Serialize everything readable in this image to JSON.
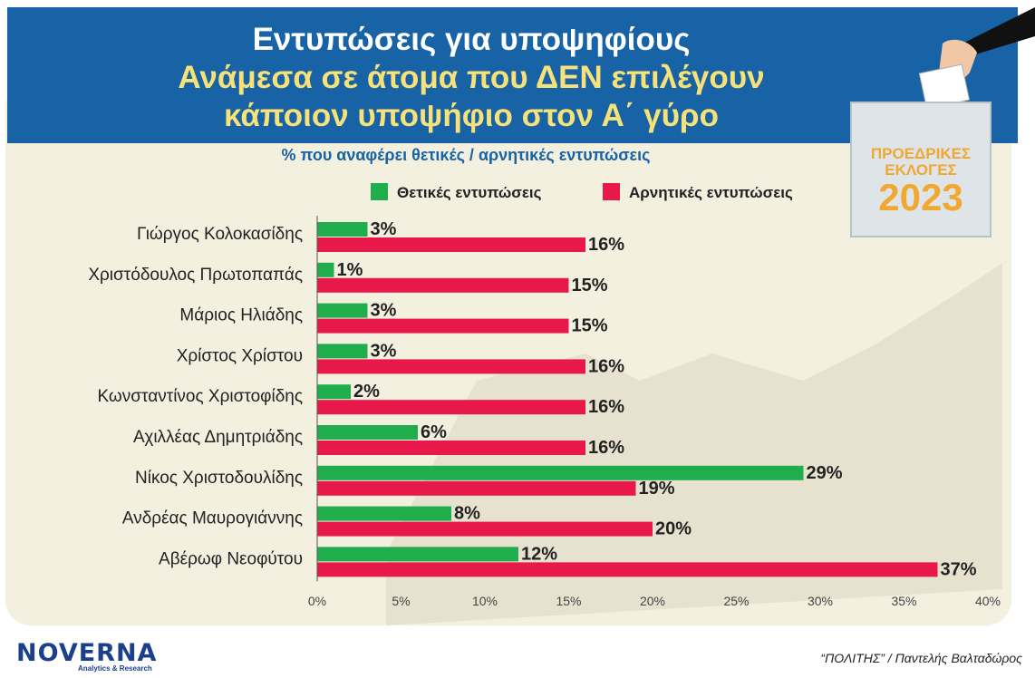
{
  "header": {
    "title_line1": "Εντυπώσεις για υποψηφίους",
    "title_line2": "Ανάμεσα σε άτομα που ΔΕΝ επιλέγουν",
    "title_line3": "κάποιον υποψήφιο στον Α΄ γύρο"
  },
  "subtitle": "% που αναφέρει θετικές / αρνητικές εντυπώσεις",
  "legend": {
    "positive": "Θετικές εντυπώσεις",
    "negative": "Αρνητικές εντυπώσεις"
  },
  "badge": {
    "line1": "ΠΡΟΕΔΡΙΚΕΣ",
    "line2": "ΕΚΛΟΓΕΣ",
    "year": "2023"
  },
  "colors": {
    "positive": "#1fae4b",
    "negative": "#e8194a",
    "banner": "#1763a6",
    "accent_text": "#f7e27a"
  },
  "footer": {
    "logo": "NOVERNA",
    "logo_sub": "Analytics & Research",
    "source": "“ΠΟΛΙΤΗΣ” / Παντελής Βαλταδώρος"
  },
  "chart_data": {
    "type": "bar",
    "orientation": "horizontal",
    "categories": [
      "Γιώργος Κολοκασίδης",
      "Χριστόδουλος Πρωτοπαπάς",
      "Μάριος Ηλιάδης",
      "Χρίστος Χρίστου",
      "Κωνσταντίνος Χριστοφίδης",
      "Αχιλλέας Δημητριάδης",
      "Νίκος Χριστοδουλίδης",
      "Ανδρέας Μαυρογιάννης",
      "Αβέρωφ Νεοφύτου"
    ],
    "series": [
      {
        "name": "Θετικές εντυπώσεις",
        "values": [
          3,
          1,
          3,
          3,
          2,
          6,
          29,
          8,
          12
        ]
      },
      {
        "name": "Αρνητικές εντυπώσεις",
        "values": [
          16,
          15,
          15,
          16,
          16,
          16,
          19,
          20,
          37
        ]
      }
    ],
    "data_labels": {
      "positive": [
        "3%",
        "1%",
        "3%",
        "3%",
        "2%",
        "6%",
        "29%",
        "8%",
        "12%"
      ],
      "negative": [
        "16%",
        "15%",
        "15%",
        "16%",
        "16%",
        "16%",
        "19%",
        "20%",
        "37%"
      ]
    },
    "xlim": [
      0,
      40
    ],
    "xticks": [
      "0%",
      "5%",
      "10%",
      "15%",
      "20%",
      "25%",
      "30%",
      "35%",
      "40%"
    ],
    "legend_position": "top"
  }
}
